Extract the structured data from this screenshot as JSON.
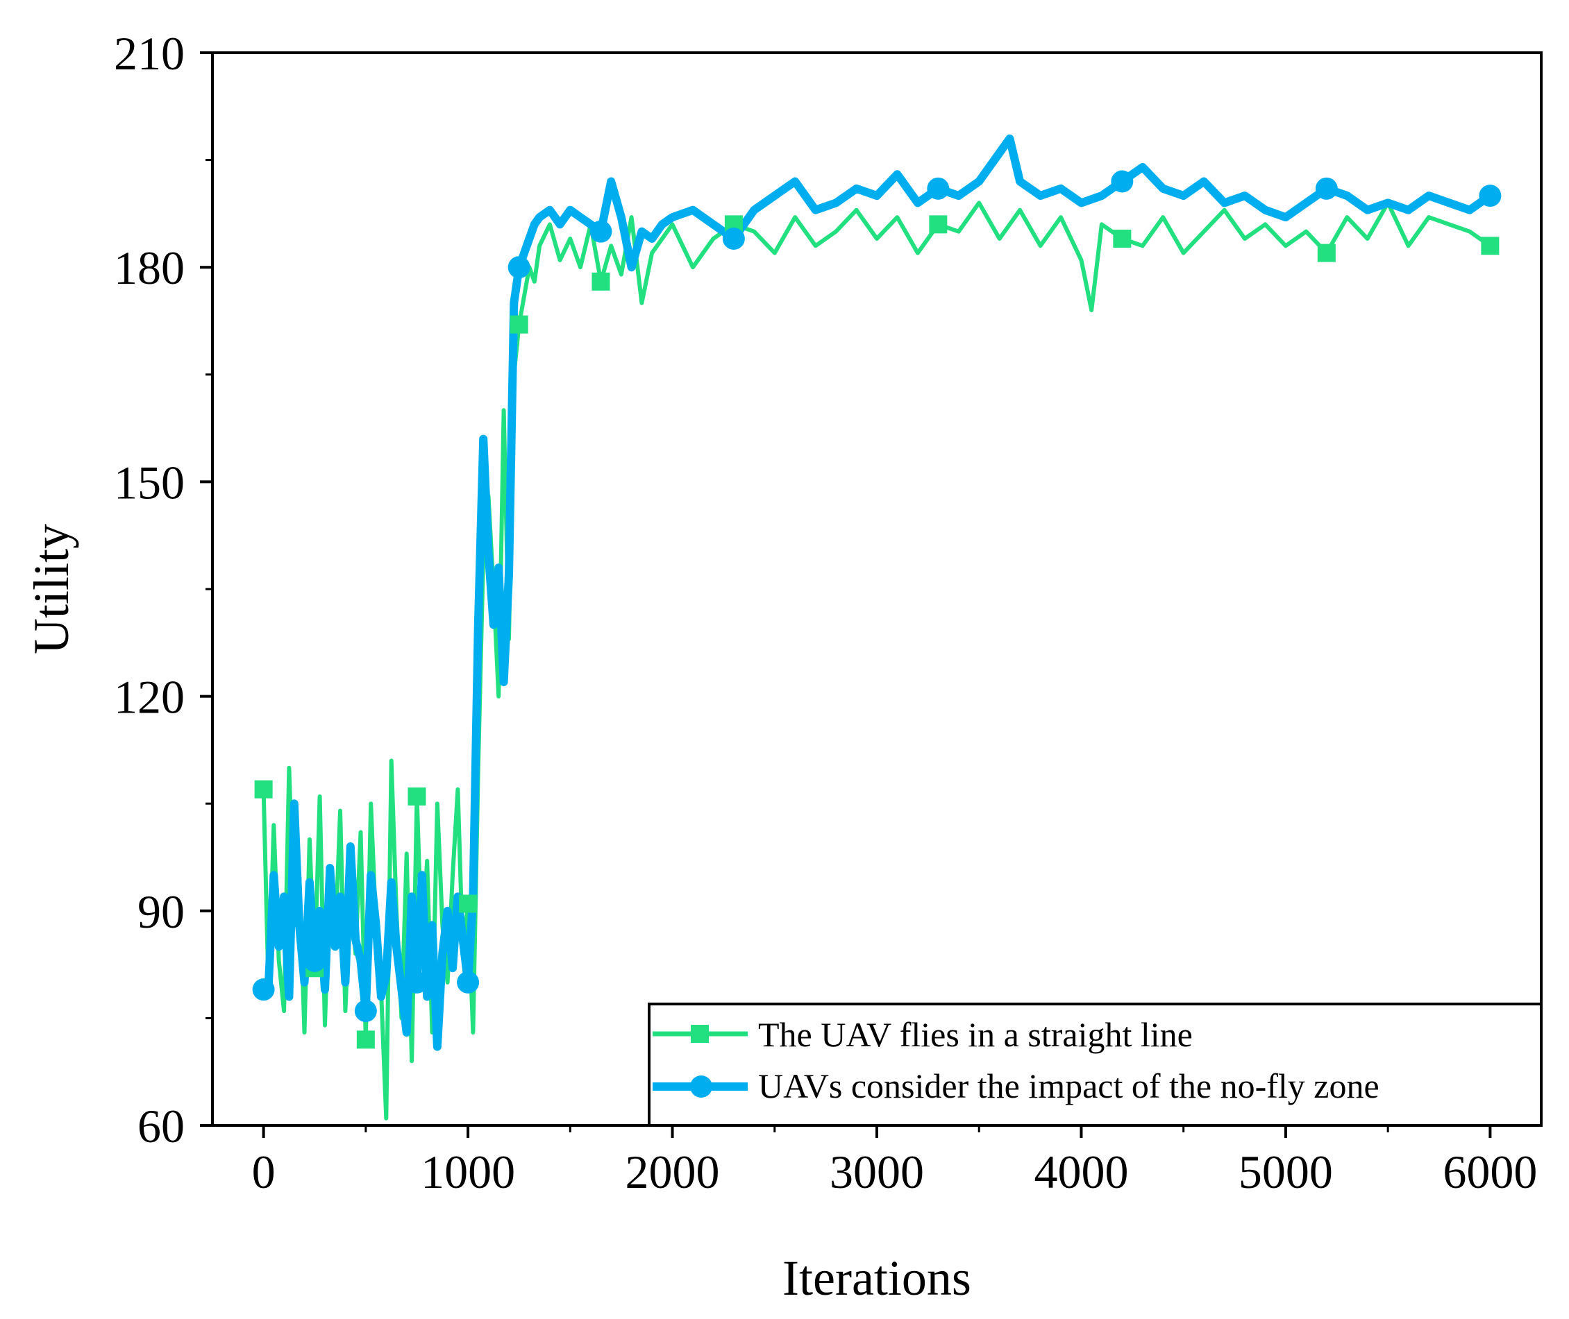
{
  "chart_data": {
    "type": "line",
    "title": "",
    "xlabel": "Iterations",
    "ylabel": "Utility",
    "xlim": [
      -250,
      6250
    ],
    "ylim": [
      60,
      210
    ],
    "xticks": [
      0,
      1000,
      2000,
      3000,
      4000,
      5000,
      6000
    ],
    "xtick_labels": [
      "0",
      "1000",
      "2000",
      "3000",
      "4000",
      "5000",
      "6000"
    ],
    "yticks": [
      60,
      90,
      120,
      150,
      180,
      210
    ],
    "ytick_labels": [
      "60",
      "90",
      "120",
      "150",
      "180",
      "210"
    ],
    "grid": false,
    "legend_position": "bottom-right",
    "series": [
      {
        "name": "The UAV flies in a straight line",
        "color": "#22e07f",
        "marker": "square",
        "x": [
          0,
          25,
          50,
          75,
          100,
          125,
          150,
          175,
          200,
          225,
          250,
          275,
          300,
          325,
          350,
          375,
          400,
          425,
          450,
          475,
          500,
          525,
          550,
          575,
          600,
          625,
          650,
          675,
          700,
          725,
          750,
          775,
          800,
          825,
          850,
          875,
          900,
          925,
          950,
          975,
          1000,
          1025,
          1050,
          1075,
          1100,
          1125,
          1150,
          1175,
          1200,
          1225,
          1250,
          1275,
          1300,
          1325,
          1350,
          1400,
          1450,
          1500,
          1550,
          1600,
          1650,
          1700,
          1750,
          1800,
          1850,
          1900,
          1950,
          2000,
          2100,
          2200,
          2300,
          2400,
          2500,
          2600,
          2700,
          2800,
          2900,
          3000,
          3100,
          3200,
          3300,
          3400,
          3500,
          3600,
          3700,
          3800,
          3900,
          4000,
          4050,
          4100,
          4200,
          4300,
          4400,
          4500,
          4600,
          4700,
          4800,
          4900,
          5000,
          5100,
          5200,
          5300,
          5400,
          5500,
          5600,
          5700,
          5800,
          5900,
          6000
        ],
        "y": [
          107,
          78,
          102,
          83,
          76,
          110,
          88,
          95,
          73,
          100,
          82,
          106,
          74,
          96,
          85,
          104,
          76,
          93,
          84,
          101,
          72,
          105,
          88,
          79,
          61,
          111,
          90,
          75,
          98,
          69,
          106,
          84,
          97,
          73,
          105,
          88,
          80,
          95,
          107,
          84,
          91,
          73,
          110,
          140,
          148,
          135,
          120,
          160,
          128,
          165,
          172,
          176,
          180,
          178,
          183,
          186,
          181,
          184,
          180,
          186,
          178,
          183,
          179,
          187,
          175,
          182,
          184,
          186,
          180,
          184,
          186,
          185,
          182,
          187,
          183,
          185,
          188,
          184,
          187,
          182,
          186,
          185,
          189,
          184,
          188,
          183,
          187,
          181,
          174,
          186,
          184,
          183,
          187,
          182,
          185,
          188,
          184,
          186,
          183,
          185,
          182,
          187,
          184,
          189,
          183,
          187,
          186,
          185,
          183
        ]
      },
      {
        "name": "UAVs consider the impact of the no-fly zone",
        "color": "#00aeef",
        "marker": "circle",
        "x": [
          0,
          25,
          50,
          75,
          100,
          125,
          150,
          175,
          200,
          225,
          250,
          275,
          300,
          325,
          350,
          375,
          400,
          425,
          450,
          475,
          500,
          525,
          550,
          575,
          600,
          625,
          650,
          675,
          700,
          725,
          750,
          775,
          800,
          825,
          850,
          875,
          900,
          925,
          950,
          975,
          1000,
          1025,
          1050,
          1075,
          1100,
          1125,
          1150,
          1175,
          1200,
          1225,
          1250,
          1275,
          1300,
          1325,
          1350,
          1400,
          1450,
          1500,
          1550,
          1600,
          1650,
          1700,
          1750,
          1800,
          1850,
          1900,
          1950,
          2000,
          2100,
          2200,
          2300,
          2400,
          2500,
          2600,
          2700,
          2800,
          2900,
          3000,
          3100,
          3200,
          3300,
          3400,
          3500,
          3600,
          3650,
          3700,
          3800,
          3900,
          4000,
          4100,
          4200,
          4300,
          4400,
          4500,
          4600,
          4700,
          4800,
          4900,
          5000,
          5100,
          5200,
          5300,
          5400,
          5500,
          5600,
          5700,
          5800,
          5900,
          6000
        ],
        "y": [
          79,
          80,
          95,
          85,
          92,
          78,
          105,
          88,
          80,
          94,
          83,
          90,
          79,
          96,
          85,
          92,
          80,
          99,
          86,
          83,
          76,
          95,
          88,
          78,
          81,
          94,
          85,
          79,
          73,
          92,
          80,
          95,
          78,
          88,
          71,
          84,
          90,
          82,
          92,
          86,
          80,
          92,
          130,
          156,
          140,
          130,
          138,
          122,
          137,
          175,
          180,
          182,
          184,
          186,
          187,
          188,
          186,
          188,
          187,
          186,
          185,
          192,
          187,
          180,
          185,
          184,
          186,
          187,
          188,
          186,
          184,
          188,
          190,
          192,
          188,
          189,
          191,
          190,
          193,
          189,
          191,
          190,
          192,
          196,
          198,
          192,
          190,
          191,
          189,
          190,
          192,
          194,
          191,
          190,
          192,
          189,
          190,
          188,
          187,
          189,
          191,
          190,
          188,
          189,
          188,
          190,
          189,
          188,
          190
        ]
      }
    ]
  }
}
